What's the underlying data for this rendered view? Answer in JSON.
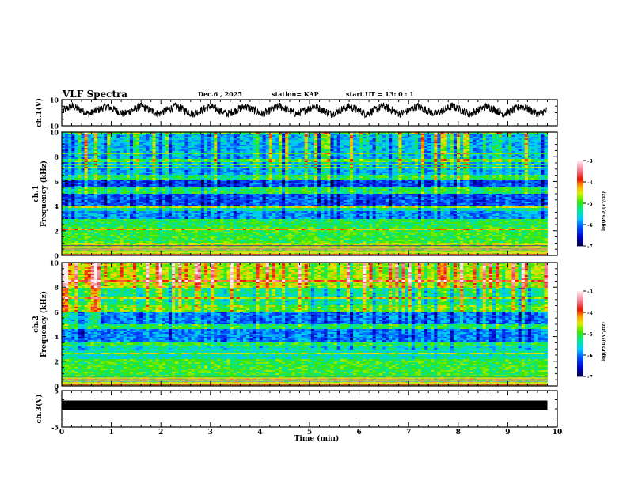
{
  "header": {
    "title": "VLF Spectra",
    "date": "Dec.6  , 2025",
    "station": "station= KAP",
    "start": "start  UT  =   13: 0  : 1"
  },
  "chart_data": [
    {
      "type": "line",
      "name": "ch1-waveform",
      "ylabel": "ch.1(V)",
      "ylim": [
        -10,
        10
      ],
      "yticks": [
        "10",
        "-10"
      ],
      "xlim": [
        0,
        10
      ],
      "data_end_min": 9.8,
      "description_values": {
        "mean": 2,
        "oscillation_amplitude": 3,
        "noise": 1.5,
        "cycles": 14
      }
    },
    {
      "type": "heatmap",
      "name": "ch1-spectrogram",
      "ylabel_top": "ch.1",
      "ylabel": "Frequency  (kHz)",
      "ylim": [
        0,
        10
      ],
      "yticks": [
        "0",
        "2",
        "4",
        "6",
        "8",
        "10"
      ],
      "xlim": [
        0,
        10
      ],
      "data_end_min": 9.8,
      "bands_khz": [
        {
          "from": 0.0,
          "to": 1.0,
          "level": -4.6
        },
        {
          "from": 1.0,
          "to": 2.3,
          "level": -5.0
        },
        {
          "from": 2.3,
          "to": 3.0,
          "level": -5.1
        },
        {
          "from": 3.0,
          "to": 3.6,
          "level": -5.8
        },
        {
          "from": 3.6,
          "to": 4.0,
          "level": -5.3
        },
        {
          "from": 4.0,
          "to": 5.0,
          "level": -6.1
        },
        {
          "from": 5.0,
          "to": 5.5,
          "level": -5.1
        },
        {
          "from": 5.5,
          "to": 6.2,
          "level": -6.2
        },
        {
          "from": 6.2,
          "to": 6.6,
          "level": -5.1
        },
        {
          "from": 6.6,
          "to": 10.0,
          "level": -5.7
        }
      ],
      "colorbar": {
        "label": "log(PSD)(V²/Hz)",
        "range": [
          -7,
          -3
        ],
        "ticks": [
          "-3",
          "-4",
          "-5",
          "-6",
          "-7"
        ]
      }
    },
    {
      "type": "heatmap",
      "name": "ch2-spectrogram",
      "ylabel_top": "ch.2",
      "ylabel": "Frequency  (kHz)",
      "ylim": [
        0,
        10
      ],
      "yticks": [
        "0",
        "2",
        "4",
        "6",
        "8",
        "10"
      ],
      "xlim": [
        0,
        10
      ],
      "data_end_min": 9.8,
      "bands_khz": [
        {
          "from": 0.0,
          "to": 0.7,
          "level": -4.5
        },
        {
          "from": 0.7,
          "to": 2.2,
          "level": -5.0
        },
        {
          "from": 2.2,
          "to": 3.2,
          "level": -5.4
        },
        {
          "from": 3.2,
          "to": 3.6,
          "level": -5.0
        },
        {
          "from": 3.6,
          "to": 4.6,
          "level": -5.9
        },
        {
          "from": 4.6,
          "to": 5.0,
          "level": -5.1
        },
        {
          "from": 5.0,
          "to": 6.0,
          "level": -6.0
        },
        {
          "from": 6.0,
          "to": 6.6,
          "level": -4.9
        },
        {
          "from": 6.6,
          "to": 8.0,
          "level": -5.3
        },
        {
          "from": 8.0,
          "to": 10.0,
          "level": -4.6
        }
      ],
      "colorbar": {
        "label": "log(PSD)(V²/Hz)",
        "range": [
          -7,
          -3
        ],
        "ticks": [
          "-3",
          "-4",
          "-5",
          "-6",
          "-7"
        ]
      }
    },
    {
      "type": "line",
      "name": "ch3-waveform",
      "ylabel": "ch.3(V)",
      "ylim": [
        -5,
        5
      ],
      "yticks": [
        "5",
        "-5"
      ],
      "xlim": [
        0,
        10
      ],
      "data_end_min": 9.8,
      "description_values": {
        "mean": 1,
        "noise": 0.4
      }
    }
  ],
  "xaxis": {
    "label": "Time  (min)",
    "ticks": [
      "0",
      "1",
      "2",
      "3",
      "4",
      "5",
      "6",
      "7",
      "8",
      "9",
      "10"
    ]
  }
}
